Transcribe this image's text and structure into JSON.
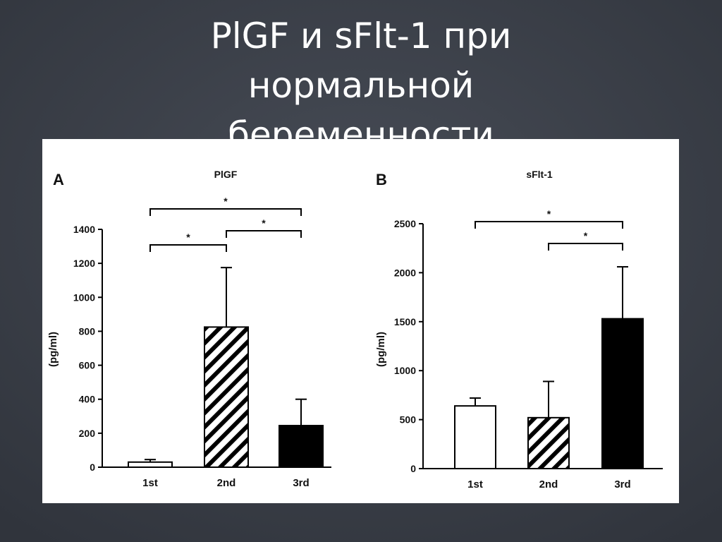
{
  "slide_title": [
    "PlGF и sFlt-1 при",
    "нормальной",
    "беременности"
  ],
  "chart_data": [
    {
      "type": "bar",
      "panel": "A",
      "title": "PlGF",
      "ylabel": "(pg/ml)",
      "categories": [
        "1st",
        "2nd",
        "3rd"
      ],
      "values": [
        30,
        825,
        245
      ],
      "errors": [
        15,
        350,
        155
      ],
      "fills": [
        "white",
        "hatch",
        "black"
      ],
      "ylim": [
        0,
        1400
      ],
      "yticks": [
        0,
        200,
        400,
        600,
        800,
        1000,
        1200,
        1400
      ],
      "brackets": [
        {
          "label": "*",
          "between": [
            "1st",
            "2nd"
          ]
        },
        {
          "label": "*",
          "between": [
            "2nd",
            "3rd"
          ]
        },
        {
          "label": "*",
          "between": [
            "1st",
            "3rd"
          ]
        }
      ]
    },
    {
      "type": "bar",
      "panel": "B",
      "title": "sFlt-1",
      "ylabel": "(pg/ml)",
      "categories": [
        "1st",
        "2nd",
        "3rd"
      ],
      "values": [
        640,
        520,
        1530
      ],
      "errors": [
        80,
        370,
        530
      ],
      "fills": [
        "white",
        "hatch",
        "black"
      ],
      "ylim": [
        0,
        2500
      ],
      "yticks": [
        0,
        500,
        1000,
        1500,
        2000,
        2500
      ],
      "brackets": [
        {
          "label": "*",
          "between": [
            "1st",
            "3rd"
          ]
        },
        {
          "label": "*",
          "between": [
            "2nd",
            "3rd"
          ]
        }
      ]
    }
  ]
}
